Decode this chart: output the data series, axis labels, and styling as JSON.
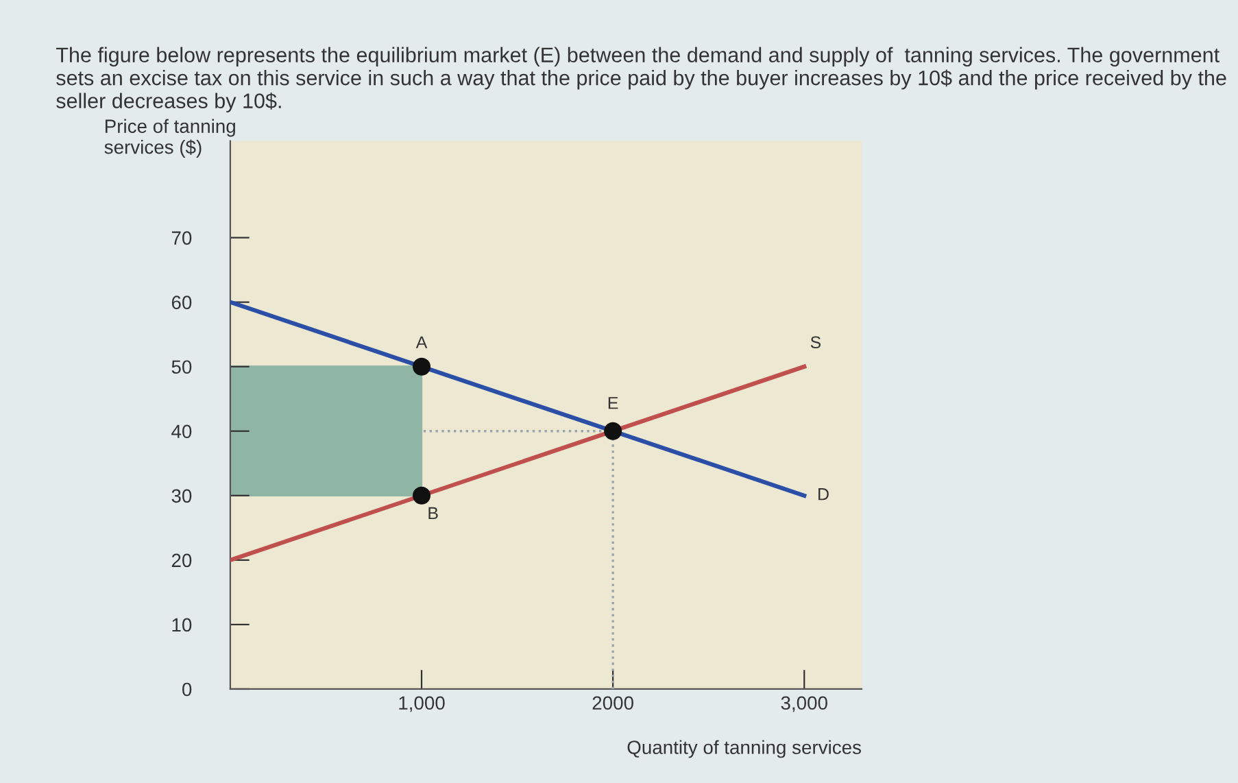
{
  "chart_data": {
    "type": "line",
    "title": "The figure below represents the equilibrium market (E) between the demand and supply of  tanning services. The government sets an excise tax on this service in such a way that the price paid by the buyer increases by 10$ and the price received by the seller decreases by 10$.",
    "xlabel": "Quantity of tanning services",
    "ylabel": "Price of tanning\nservices ($)",
    "xlim": [
      0,
      3300
    ],
    "ylim": [
      0,
      85
    ],
    "xticks": [
      {
        "value": 1000,
        "label": "1,000"
      },
      2000,
      {
        "value": 3000,
        "label": "3,000"
      }
    ],
    "yticks": [
      0,
      10,
      20,
      30,
      40,
      50,
      60,
      70
    ],
    "grid": false,
    "legend": false,
    "marker": "none",
    "line_style": "solid",
    "series": [
      {
        "color": "#8fb5a4",
        "x": [
          0,
          1000
        ],
        "values": [
          50,
          50
        ],
        "lower": [
          30,
          30
        ],
        "upper": [
          50,
          50
        ]
      },
      {
        "color": "#2b4fa6",
        "x": [
          0,
          3000
        ],
        "values": [
          60,
          30
        ]
      },
      {
        "color": "#c0504d",
        "x": [
          0,
          3000
        ],
        "values": [
          20,
          50
        ]
      },
      {
        "type": "line",
        "color": "#9aa4aa",
        "line_style": "dotted",
        "x": [
          1010,
          2000
        ],
        "values": [
          40,
          40
        ]
      },
      {
        "type": "line",
        "color": "#9aa4aa",
        "line_style": "dotted",
        "x": [
          2000,
          2000
        ],
        "values": [
          0,
          40
        ]
      },
      {
        "type": "scatter",
        "color": "#111111",
        "marker": "circle",
        "x": [
          1000,
          1000,
          2000
        ],
        "values": [
          50,
          30,
          40
        ]
      }
    ],
    "annotations": [
      {
        "text": "A",
        "x": 1000,
        "y": 50
      },
      {
        "text": "B",
        "x": 1000,
        "y": 30
      },
      {
        "text": "E",
        "x": 2000,
        "y": 40
      },
      {
        "text": "S",
        "x": 3000,
        "y": 50
      },
      {
        "text": "D",
        "x": 3000,
        "y": 30
      }
    ]
  }
}
